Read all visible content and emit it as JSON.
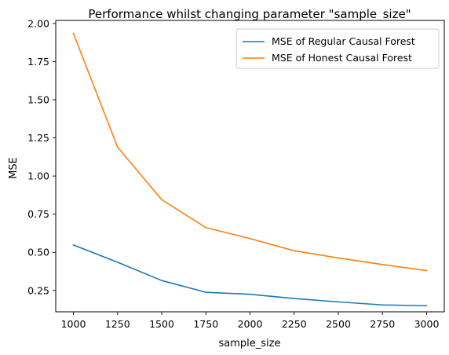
{
  "chart_data": {
    "type": "line",
    "title": "Performance whilst changing parameter \"sample_size\"",
    "xlabel": "sample_size",
    "ylabel": "MSE",
    "x": [
      1000,
      1250,
      1500,
      1750,
      2000,
      2250,
      2500,
      2750,
      3000
    ],
    "x_ticks": [
      "1000",
      "1250",
      "1500",
      "1750",
      "2000",
      "2250",
      "2500",
      "2750",
      "3000"
    ],
    "y_ticks": [
      "0.25",
      "0.50",
      "0.75",
      "1.00",
      "1.25",
      "1.50",
      "1.75",
      "2.00"
    ],
    "xlim": [
      900,
      3100
    ],
    "ylim": [
      0.11,
      2.02
    ],
    "grid": false,
    "legend_position": "top-right",
    "series": [
      {
        "name": "MSE of Regular Causal Forest",
        "color": "#1f77b4",
        "values": [
          0.548,
          0.435,
          0.315,
          0.238,
          0.225,
          0.197,
          0.175,
          0.155,
          0.15
        ]
      },
      {
        "name": "MSE of Honest Causal Forest",
        "color": "#ff7f0e",
        "values": [
          1.935,
          1.19,
          0.845,
          0.662,
          0.59,
          0.51,
          0.463,
          0.42,
          0.38
        ]
      }
    ]
  }
}
